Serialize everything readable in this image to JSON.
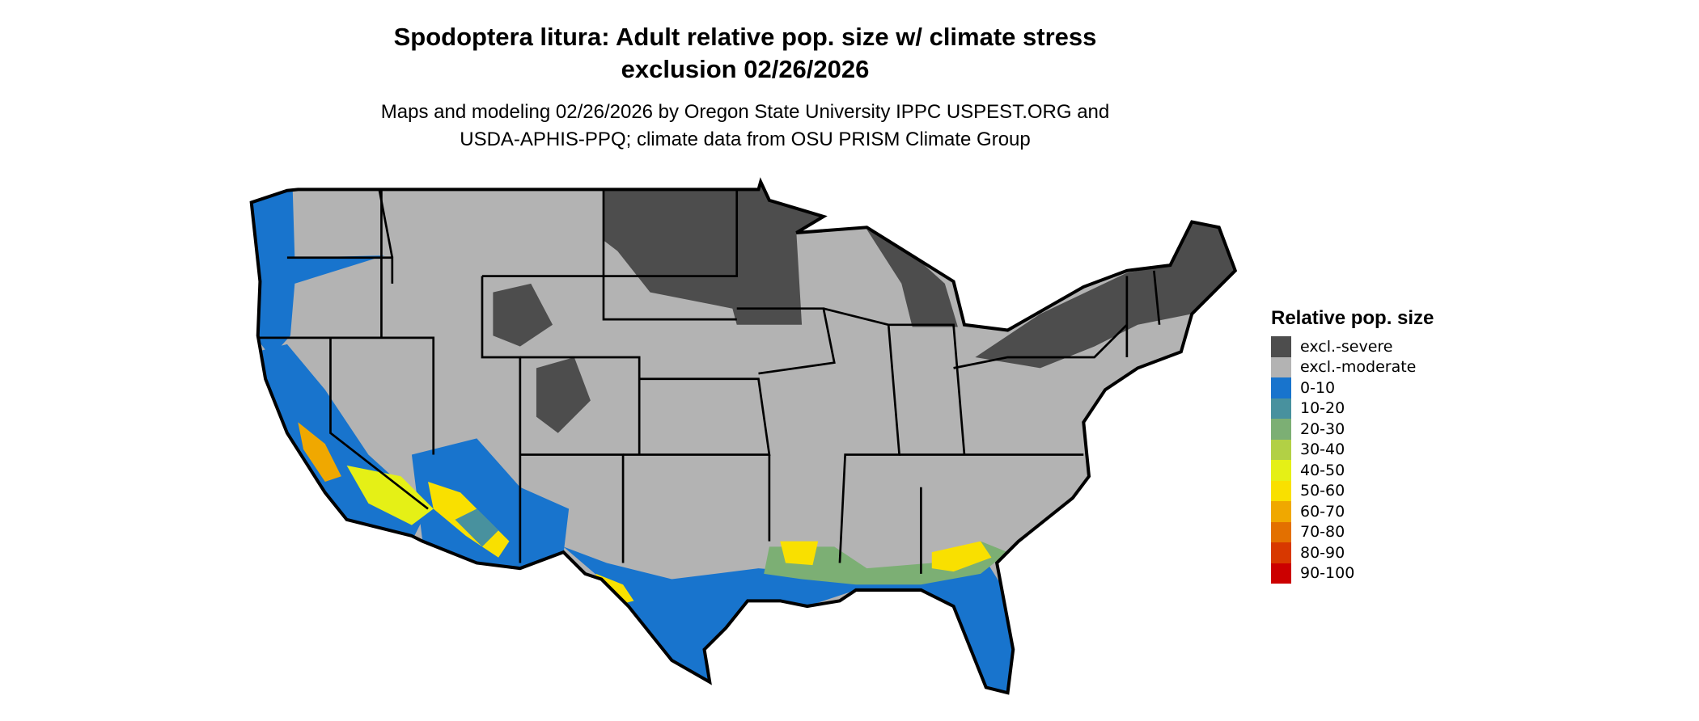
{
  "title_line1": "Spodoptera litura: Adult relative pop. size w/ climate stress",
  "title_line2": "exclusion 02/26/2026",
  "subtitle_line1": "Maps and modeling 02/26/2026 by Oregon State University IPPC USPEST.ORG and",
  "subtitle_line2": "USDA-APHIS-PPQ; climate data from OSU PRISM Climate Group",
  "legend": {
    "title": "Relative pop. size",
    "items": [
      {
        "label": "excl.-severe",
        "color": "#4d4d4d"
      },
      {
        "label": "excl.-moderate",
        "color": "#b3b3b3"
      },
      {
        "label": "0-10",
        "color": "#1874cd"
      },
      {
        "label": "10-20",
        "color": "#48919e"
      },
      {
        "label": "20-30",
        "color": "#7caf74"
      },
      {
        "label": "30-40",
        "color": "#b2d045"
      },
      {
        "label": "40-50",
        "color": "#e5f016"
      },
      {
        "label": "50-60",
        "color": "#f9e000"
      },
      {
        "label": "60-70",
        "color": "#f0a800"
      },
      {
        "label": "70-80",
        "color": "#e37000"
      },
      {
        "label": "80-90",
        "color": "#d83800"
      },
      {
        "label": "90-100",
        "color": "#cc0000"
      }
    ]
  }
}
